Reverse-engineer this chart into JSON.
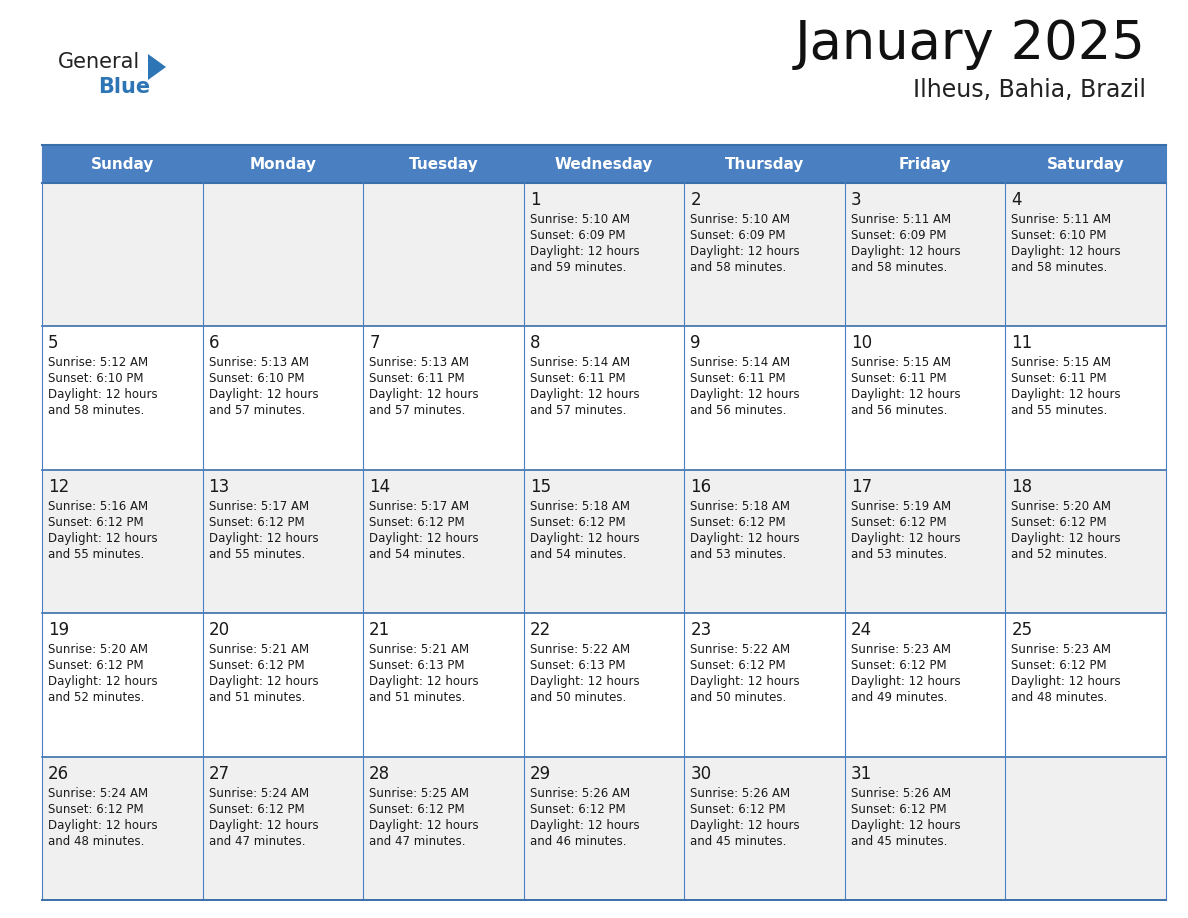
{
  "title": "January 2025",
  "subtitle": "Ilheus, Bahia, Brazil",
  "header_bg": "#4a7fc1",
  "header_text_color": "#FFFFFF",
  "row_bg_odd": "#F0F0F0",
  "row_bg_even": "#FFFFFF",
  "day_headers": [
    "Sunday",
    "Monday",
    "Tuesday",
    "Wednesday",
    "Thursday",
    "Friday",
    "Saturday"
  ],
  "weeks": [
    [
      {
        "day": "",
        "sunrise": "",
        "sunset": "",
        "daylight_h": "",
        "daylight_m": ""
      },
      {
        "day": "",
        "sunrise": "",
        "sunset": "",
        "daylight_h": "",
        "daylight_m": ""
      },
      {
        "day": "",
        "sunrise": "",
        "sunset": "",
        "daylight_h": "",
        "daylight_m": ""
      },
      {
        "day": "1",
        "sunrise": "5:10 AM",
        "sunset": "6:09 PM",
        "daylight_h": "12 hours",
        "daylight_m": "59 minutes."
      },
      {
        "day": "2",
        "sunrise": "5:10 AM",
        "sunset": "6:09 PM",
        "daylight_h": "12 hours",
        "daylight_m": "58 minutes."
      },
      {
        "day": "3",
        "sunrise": "5:11 AM",
        "sunset": "6:09 PM",
        "daylight_h": "12 hours",
        "daylight_m": "58 minutes."
      },
      {
        "day": "4",
        "sunrise": "5:11 AM",
        "sunset": "6:10 PM",
        "daylight_h": "12 hours",
        "daylight_m": "58 minutes."
      }
    ],
    [
      {
        "day": "5",
        "sunrise": "5:12 AM",
        "sunset": "6:10 PM",
        "daylight_h": "12 hours",
        "daylight_m": "58 minutes."
      },
      {
        "day": "6",
        "sunrise": "5:13 AM",
        "sunset": "6:10 PM",
        "daylight_h": "12 hours",
        "daylight_m": "57 minutes."
      },
      {
        "day": "7",
        "sunrise": "5:13 AM",
        "sunset": "6:11 PM",
        "daylight_h": "12 hours",
        "daylight_m": "57 minutes."
      },
      {
        "day": "8",
        "sunrise": "5:14 AM",
        "sunset": "6:11 PM",
        "daylight_h": "12 hours",
        "daylight_m": "57 minutes."
      },
      {
        "day": "9",
        "sunrise": "5:14 AM",
        "sunset": "6:11 PM",
        "daylight_h": "12 hours",
        "daylight_m": "56 minutes."
      },
      {
        "day": "10",
        "sunrise": "5:15 AM",
        "sunset": "6:11 PM",
        "daylight_h": "12 hours",
        "daylight_m": "56 minutes."
      },
      {
        "day": "11",
        "sunrise": "5:15 AM",
        "sunset": "6:11 PM",
        "daylight_h": "12 hours",
        "daylight_m": "55 minutes."
      }
    ],
    [
      {
        "day": "12",
        "sunrise": "5:16 AM",
        "sunset": "6:12 PM",
        "daylight_h": "12 hours",
        "daylight_m": "55 minutes."
      },
      {
        "day": "13",
        "sunrise": "5:17 AM",
        "sunset": "6:12 PM",
        "daylight_h": "12 hours",
        "daylight_m": "55 minutes."
      },
      {
        "day": "14",
        "sunrise": "5:17 AM",
        "sunset": "6:12 PM",
        "daylight_h": "12 hours",
        "daylight_m": "54 minutes."
      },
      {
        "day": "15",
        "sunrise": "5:18 AM",
        "sunset": "6:12 PM",
        "daylight_h": "12 hours",
        "daylight_m": "54 minutes."
      },
      {
        "day": "16",
        "sunrise": "5:18 AM",
        "sunset": "6:12 PM",
        "daylight_h": "12 hours",
        "daylight_m": "53 minutes."
      },
      {
        "day": "17",
        "sunrise": "5:19 AM",
        "sunset": "6:12 PM",
        "daylight_h": "12 hours",
        "daylight_m": "53 minutes."
      },
      {
        "day": "18",
        "sunrise": "5:20 AM",
        "sunset": "6:12 PM",
        "daylight_h": "12 hours",
        "daylight_m": "52 minutes."
      }
    ],
    [
      {
        "day": "19",
        "sunrise": "5:20 AM",
        "sunset": "6:12 PM",
        "daylight_h": "12 hours",
        "daylight_m": "52 minutes."
      },
      {
        "day": "20",
        "sunrise": "5:21 AM",
        "sunset": "6:12 PM",
        "daylight_h": "12 hours",
        "daylight_m": "51 minutes."
      },
      {
        "day": "21",
        "sunrise": "5:21 AM",
        "sunset": "6:13 PM",
        "daylight_h": "12 hours",
        "daylight_m": "51 minutes."
      },
      {
        "day": "22",
        "sunrise": "5:22 AM",
        "sunset": "6:13 PM",
        "daylight_h": "12 hours",
        "daylight_m": "50 minutes."
      },
      {
        "day": "23",
        "sunrise": "5:22 AM",
        "sunset": "6:12 PM",
        "daylight_h": "12 hours",
        "daylight_m": "50 minutes."
      },
      {
        "day": "24",
        "sunrise": "5:23 AM",
        "sunset": "6:12 PM",
        "daylight_h": "12 hours",
        "daylight_m": "49 minutes."
      },
      {
        "day": "25",
        "sunrise": "5:23 AM",
        "sunset": "6:12 PM",
        "daylight_h": "12 hours",
        "daylight_m": "48 minutes."
      }
    ],
    [
      {
        "day": "26",
        "sunrise": "5:24 AM",
        "sunset": "6:12 PM",
        "daylight_h": "12 hours",
        "daylight_m": "48 minutes."
      },
      {
        "day": "27",
        "sunrise": "5:24 AM",
        "sunset": "6:12 PM",
        "daylight_h": "12 hours",
        "daylight_m": "47 minutes."
      },
      {
        "day": "28",
        "sunrise": "5:25 AM",
        "sunset": "6:12 PM",
        "daylight_h": "12 hours",
        "daylight_m": "47 minutes."
      },
      {
        "day": "29",
        "sunrise": "5:26 AM",
        "sunset": "6:12 PM",
        "daylight_h": "12 hours",
        "daylight_m": "46 minutes."
      },
      {
        "day": "30",
        "sunrise": "5:26 AM",
        "sunset": "6:12 PM",
        "daylight_h": "12 hours",
        "daylight_m": "45 minutes."
      },
      {
        "day": "31",
        "sunrise": "5:26 AM",
        "sunset": "6:12 PM",
        "daylight_h": "12 hours",
        "daylight_m": "45 minutes."
      },
      {
        "day": "",
        "sunrise": "",
        "sunset": "",
        "daylight_h": "",
        "daylight_m": ""
      }
    ]
  ],
  "logo_general_color": "#222222",
  "logo_blue_color": "#2E75B6",
  "title_color": "#111111",
  "subtitle_color": "#222222",
  "border_color": "#3a6eaa",
  "grid_color": "#4a7fc1"
}
